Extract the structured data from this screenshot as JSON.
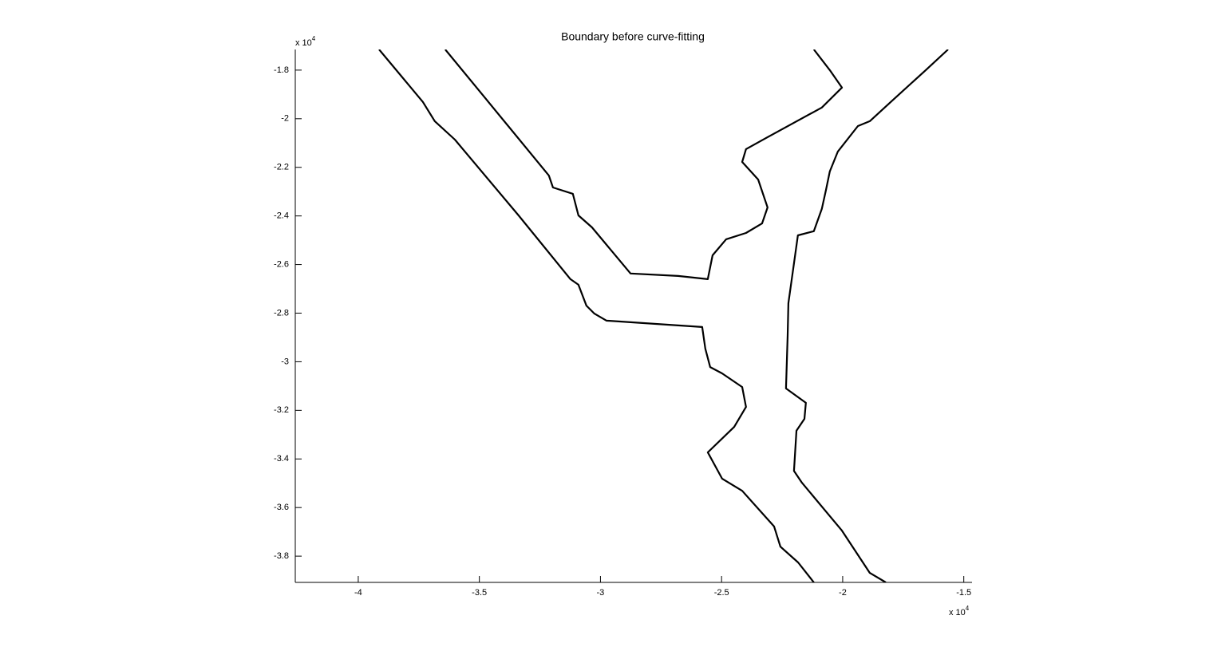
{
  "chart_data": {
    "type": "line",
    "title": "Boundary before curve-fitting",
    "x_multiplier": {
      "base": "x 10",
      "exponent": "4"
    },
    "y_multiplier": {
      "base": "x 10",
      "exponent": "4"
    },
    "xlim": [
      -4.26,
      -1.466
    ],
    "ylim": [
      -3.908,
      -1.715
    ],
    "xticks": [
      -4,
      -3.5,
      -3,
      -2.5,
      -2,
      -1.5
    ],
    "yticks": [
      -3.8,
      -3.6,
      -3.4,
      -3.2,
      -3,
      -2.8,
      -2.6,
      -2.4,
      -2.2,
      -2,
      -1.8
    ],
    "grid": false,
    "series": [
      {
        "color": "#000000",
        "x": [
          -3.914,
          -3.733,
          -3.684,
          -3.601,
          -3.568,
          -3.338,
          -3.124,
          -3.091,
          -3.058,
          -3.025,
          -2.975,
          -2.58,
          -2.567,
          -2.547,
          -2.498,
          -2.415,
          -2.399,
          -2.448,
          -2.557,
          -2.537,
          -2.498,
          -2.415,
          -2.283,
          -2.257,
          -2.184,
          -2.119
        ],
        "y": [
          -1.715,
          -1.931,
          -2.01,
          -2.086,
          -2.125,
          -2.398,
          -2.66,
          -2.683,
          -2.769,
          -2.802,
          -2.831,
          -2.857,
          -2.946,
          -3.022,
          -3.048,
          -3.104,
          -3.186,
          -3.268,
          -3.373,
          -3.409,
          -3.481,
          -3.531,
          -3.678,
          -3.761,
          -3.826,
          -3.908
        ]
      },
      {
        "color": "#000000",
        "x": [
          -3.641,
          -3.47,
          -3.213,
          -3.196,
          -3.114,
          -3.091,
          -3.035,
          -2.876,
          -2.679,
          -2.557,
          -2.537,
          -2.481,
          -2.399,
          -2.333,
          -2.31,
          -2.349,
          -2.415,
          -2.399,
          -2.316,
          -2.086,
          -2.003,
          -2.053,
          -2.119
        ],
        "y": [
          -1.715,
          -1.922,
          -2.234,
          -2.283,
          -2.309,
          -2.398,
          -2.447,
          -2.637,
          -2.647,
          -2.66,
          -2.562,
          -2.496,
          -2.47,
          -2.431,
          -2.365,
          -2.25,
          -2.178,
          -2.125,
          -2.079,
          -1.954,
          -1.872,
          -1.8,
          -1.715
        ]
      },
      {
        "color": "#000000",
        "x": [
          -1.565,
          -1.657,
          -1.773,
          -1.888,
          -1.937,
          -2.02,
          -2.053,
          -2.069,
          -2.086,
          -2.119,
          -2.185,
          -2.201,
          -2.224,
          -2.227,
          -2.234,
          -2.152,
          -2.158,
          -2.191,
          -2.201,
          -2.168,
          -2.003,
          -1.888,
          -1.822
        ],
        "y": [
          -1.715,
          -1.8,
          -1.905,
          -2.01,
          -2.03,
          -2.135,
          -2.217,
          -2.293,
          -2.371,
          -2.463,
          -2.48,
          -2.595,
          -2.759,
          -2.89,
          -3.11,
          -3.169,
          -3.235,
          -3.284,
          -3.449,
          -3.498,
          -3.695,
          -3.869,
          -3.908
        ]
      }
    ]
  }
}
